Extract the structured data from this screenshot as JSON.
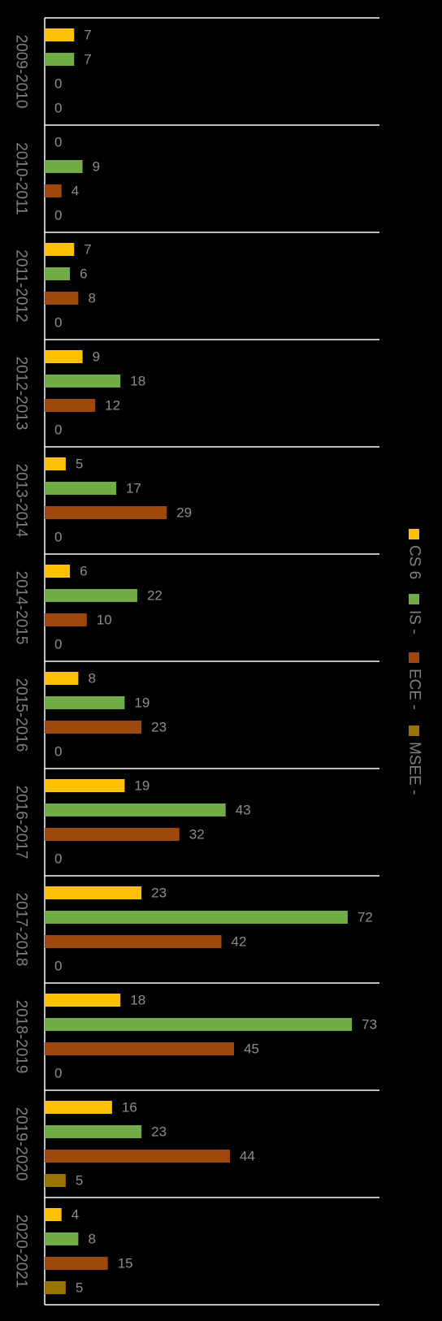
{
  "chart_data": {
    "type": "bar",
    "orientation": "horizontal",
    "categories": [
      "2009-2010",
      "2010-2011",
      "2011-2012",
      "2012-2013",
      "2013-2014",
      "2014-2015",
      "2015-2016",
      "2016-2017",
      "2017-2018",
      "2018-2019",
      "2019-2020",
      "2020-2021"
    ],
    "series": [
      {
        "name": "CS 6",
        "color": "#FFC000",
        "values": [
          7,
          0,
          7,
          9,
          5,
          6,
          8,
          19,
          23,
          18,
          16,
          4
        ]
      },
      {
        "name": "IS -",
        "color": "#70AD47",
        "values": [
          7,
          9,
          6,
          18,
          17,
          22,
          19,
          43,
          72,
          73,
          23,
          8
        ]
      },
      {
        "name": "ECE -",
        "color": "#9E480E",
        "values": [
          0,
          4,
          8,
          12,
          29,
          10,
          23,
          32,
          42,
          45,
          44,
          15
        ]
      },
      {
        "name": "MSEE -",
        "color": "#997300",
        "values": [
          0,
          0,
          0,
          0,
          0,
          0,
          0,
          0,
          0,
          0,
          5,
          5
        ]
      }
    ],
    "xlim": [
      0,
      80
    ],
    "grid": false,
    "data_labels": true,
    "legend_position": "right"
  }
}
